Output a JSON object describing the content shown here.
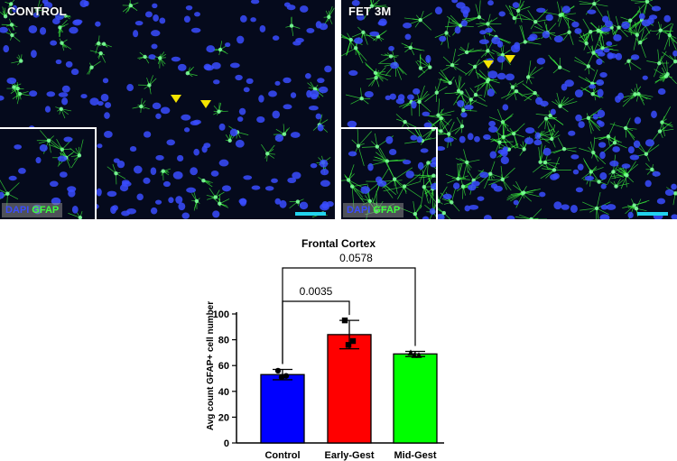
{
  "panels": [
    {
      "label": "CONTROL",
      "stain_dapi": "DAPI",
      "stain_gfap": "GFAP"
    },
    {
      "label": "FET 3M",
      "stain_dapi": "DAPI",
      "stain_gfap": "GFAP"
    }
  ],
  "colors": {
    "dapi": "#3a4cff",
    "gfap": "#3dff3d",
    "scalebar": "#22d3ee",
    "arrowhead": "#f5e400"
  },
  "chart_data": {
    "type": "bar",
    "title": "Frontal  Cortex",
    "ylabel": "Avg count GFAP+ cell number",
    "xlabel": "",
    "categories": [
      "Control",
      "Early-Gest",
      "Mid-Gest"
    ],
    "values": [
      53,
      84,
      69
    ],
    "errors": [
      4,
      11,
      2
    ],
    "colors": [
      "#0000ff",
      "#ff0000",
      "#00ff00"
    ],
    "points": [
      [
        56,
        52,
        51
      ],
      [
        95,
        79,
        76
      ],
      [
        70,
        68,
        68
      ]
    ],
    "point_markers": [
      "circle",
      "square",
      "triangle"
    ],
    "ylim": [
      0,
      100
    ],
    "yticks": [
      0,
      20,
      40,
      60,
      80,
      100
    ],
    "brackets": [
      {
        "from": 0,
        "to": 1,
        "label": "0.0035"
      },
      {
        "from": 0,
        "to": 2,
        "label": "0.0578"
      }
    ]
  }
}
